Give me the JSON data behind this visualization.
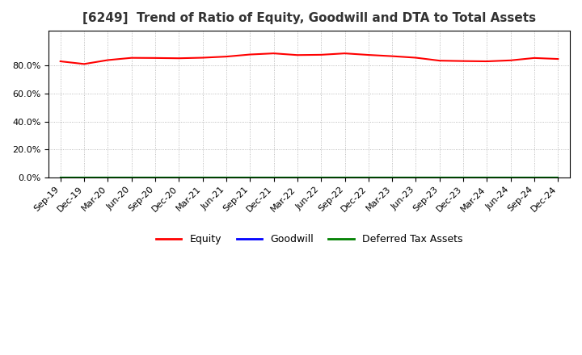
{
  "title": "[6249]  Trend of Ratio of Equity, Goodwill and DTA to Total Assets",
  "x_labels": [
    "Sep-19",
    "Dec-19",
    "Mar-20",
    "Jun-20",
    "Sep-20",
    "Dec-20",
    "Mar-21",
    "Jun-21",
    "Sep-21",
    "Dec-21",
    "Mar-22",
    "Jun-22",
    "Sep-22",
    "Dec-22",
    "Mar-23",
    "Jun-23",
    "Sep-23",
    "Dec-23",
    "Mar-24",
    "Jun-24",
    "Sep-24",
    "Dec-24"
  ],
  "equity": [
    0.831,
    0.812,
    0.84,
    0.856,
    0.855,
    0.853,
    0.857,
    0.865,
    0.88,
    0.888,
    0.876,
    0.878,
    0.888,
    0.877,
    0.868,
    0.857,
    0.836,
    0.833,
    0.831,
    0.838,
    0.855,
    0.848
  ],
  "goodwill": [
    0.0,
    0.0,
    0.0,
    0.0,
    0.0,
    0.0,
    0.0,
    0.0,
    0.0,
    0.0,
    0.0,
    0.0,
    0.0,
    0.0,
    0.0,
    0.0,
    0.0,
    0.0,
    0.0,
    0.0,
    0.0,
    0.0
  ],
  "dta": [
    0.0,
    0.0,
    0.0,
    0.0,
    0.0,
    0.0,
    0.0,
    0.0,
    0.0,
    0.0,
    0.0,
    0.0,
    0.0,
    0.0,
    0.0,
    0.0,
    0.0,
    0.0,
    0.0,
    0.0,
    0.0,
    0.0
  ],
  "equity_color": "#ff0000",
  "goodwill_color": "#0000ff",
  "dta_color": "#008000",
  "ylim": [
    0.0,
    1.05
  ],
  "yticks": [
    0.0,
    0.2,
    0.4,
    0.6,
    0.8
  ],
  "background_color": "#ffffff",
  "plot_bg_color": "#ffffff",
  "grid_color": "#aaaaaa",
  "title_fontsize": 11,
  "tick_fontsize": 8,
  "legend_labels": [
    "Equity",
    "Goodwill",
    "Deferred Tax Assets"
  ],
  "line_width": 1.5
}
